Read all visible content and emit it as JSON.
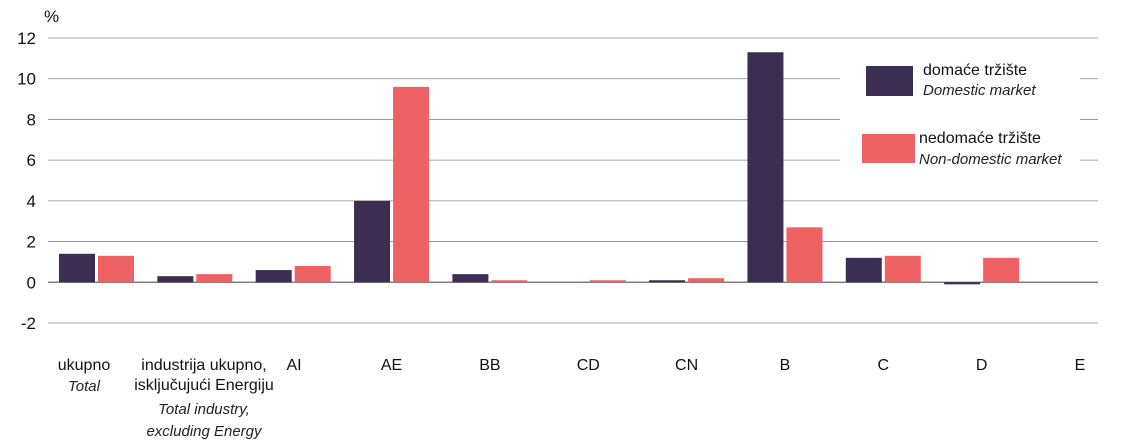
{
  "chart_data": {
    "type": "bar",
    "ylabel": "%",
    "ylim": [
      -2,
      12
    ],
    "yticks": [
      "12",
      "10",
      "8",
      "6",
      "4",
      "2",
      "0",
      "-2"
    ],
    "grid": true,
    "legend_position": "top-right",
    "categories": [
      {
        "label": "ukupno",
        "label_en": "Total"
      },
      {
        "label": "industrija ukupno, isključujući Energiju",
        "label_en": "Total industry, excluding Energy"
      },
      {
        "label": "AI",
        "label_en": ""
      },
      {
        "label": "AE",
        "label_en": ""
      },
      {
        "label": "BB",
        "label_en": ""
      },
      {
        "label": "CD",
        "label_en": ""
      },
      {
        "label": "CN",
        "label_en": ""
      },
      {
        "label": "B",
        "label_en": ""
      },
      {
        "label": "C",
        "label_en": ""
      },
      {
        "label": "D",
        "label_en": ""
      },
      {
        "label": "E",
        "label_en": ""
      }
    ],
    "series": [
      {
        "name": "domaće tržište",
        "name_en": "Domestic market",
        "color": "#3c2d52",
        "values": [
          1.4,
          0.3,
          0.6,
          4.0,
          0.4,
          0,
          0.1,
          11.3,
          1.2,
          -0.1,
          0
        ]
      },
      {
        "name": "nedomaće tržište",
        "name_en": "Non-domestic market",
        "color": "#ee6264",
        "values": [
          1.3,
          0.4,
          0.8,
          9.6,
          0.1,
          0.1,
          0.2,
          2.7,
          1.3,
          1.2,
          0
        ]
      }
    ]
  }
}
